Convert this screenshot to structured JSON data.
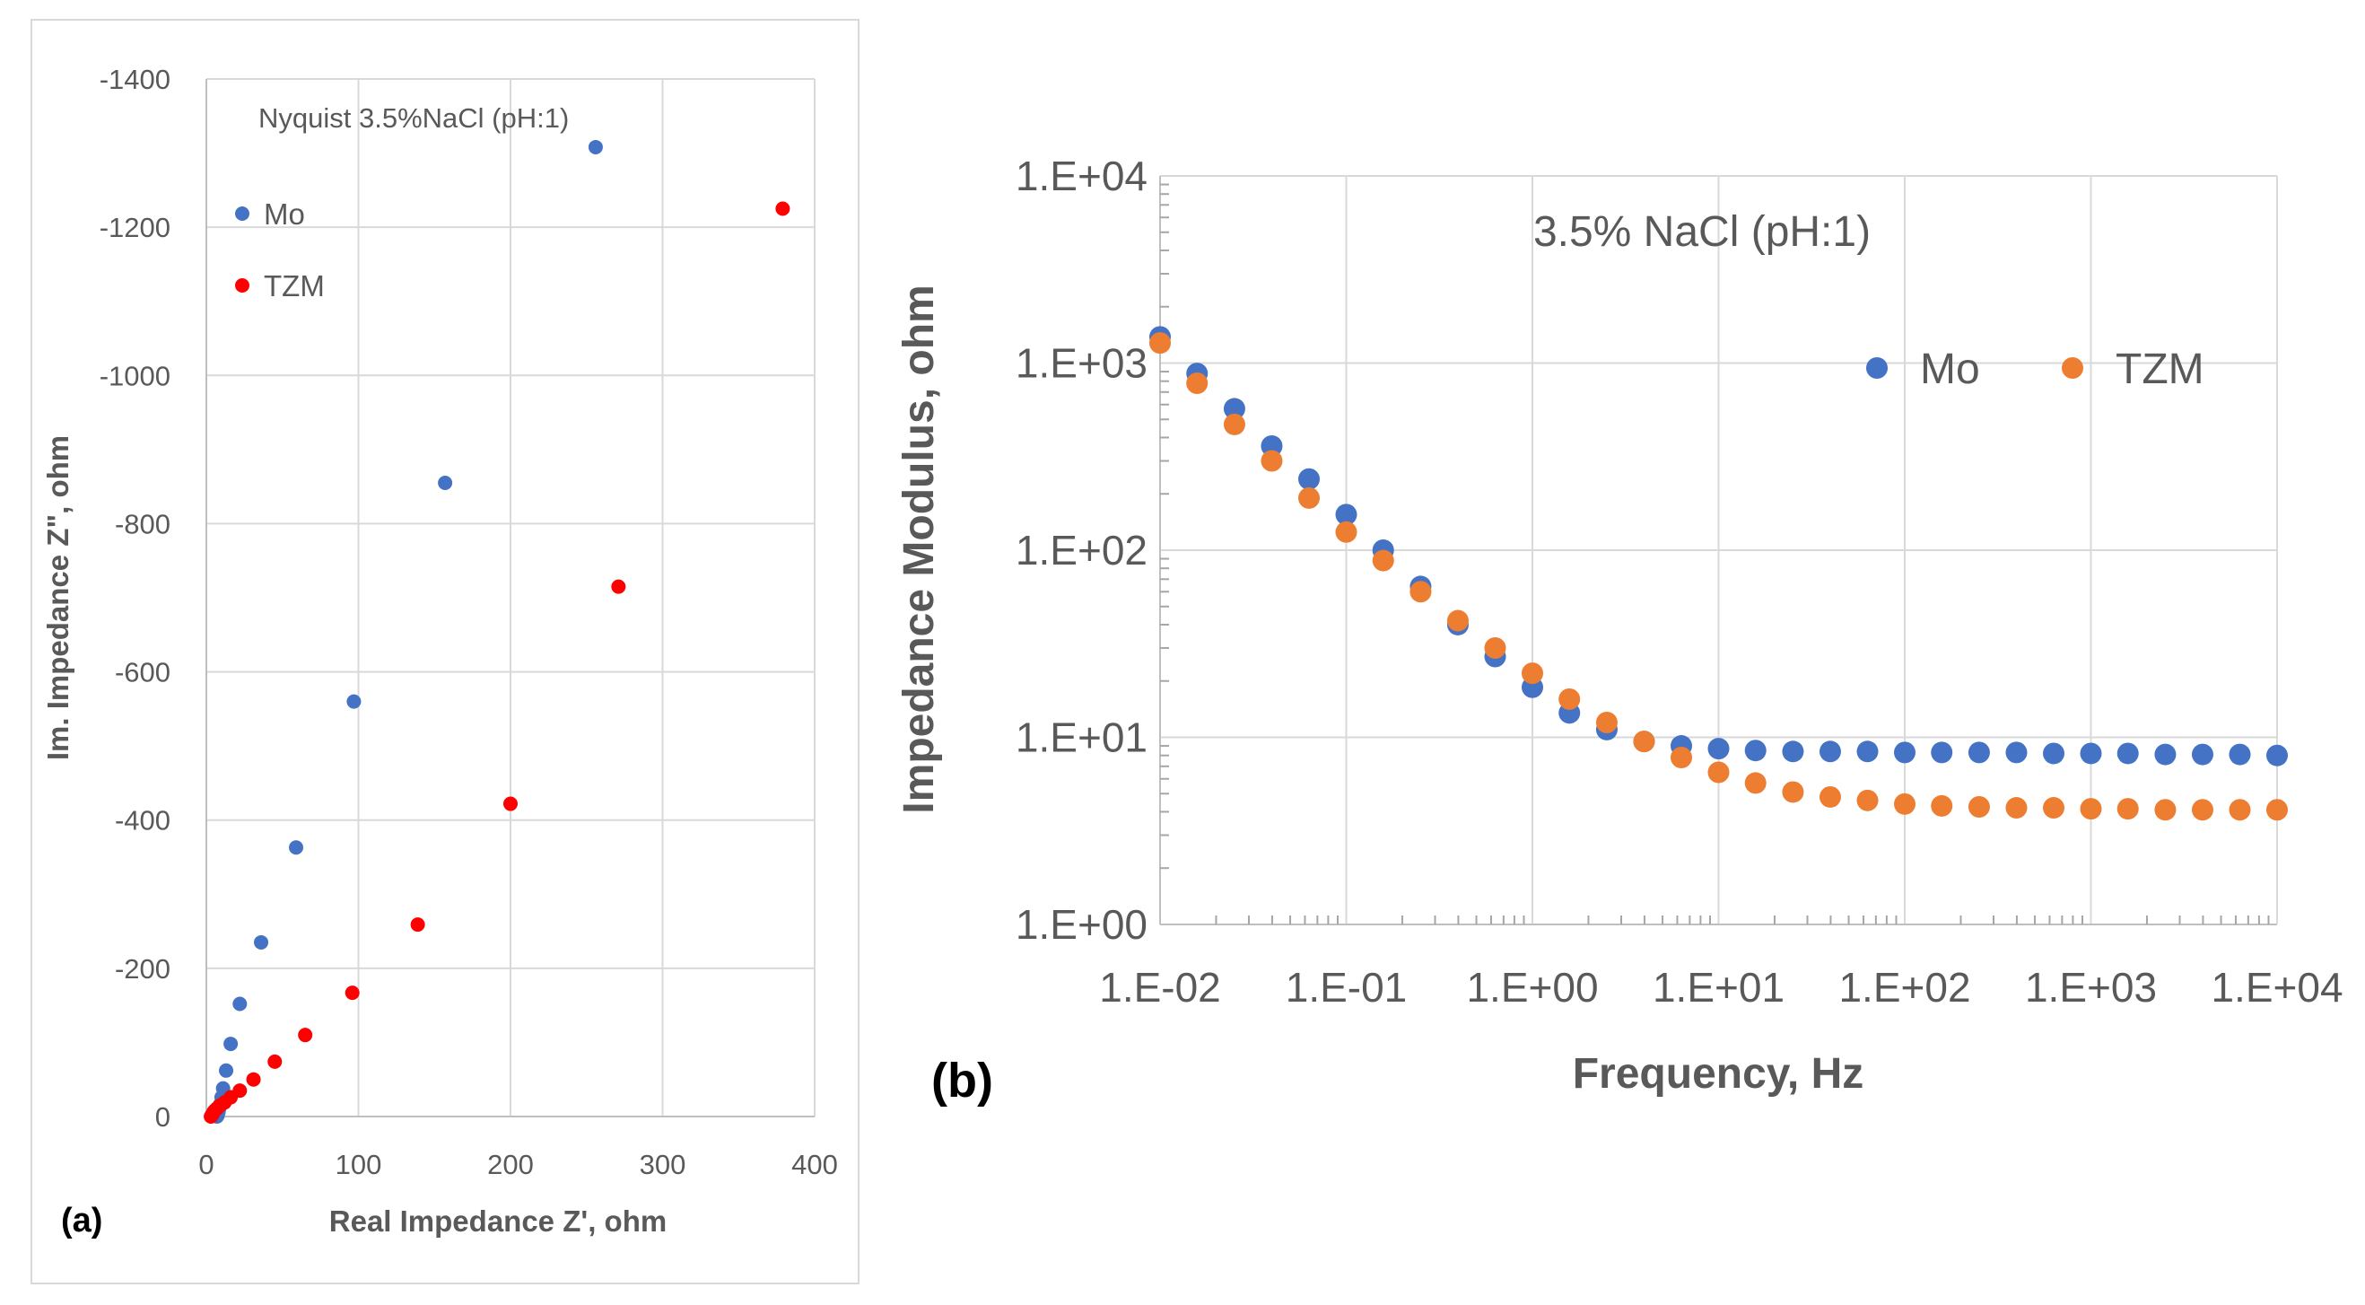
{
  "panels": {
    "a": {
      "label": "(a)"
    },
    "b": {
      "label": "(b)"
    }
  },
  "colors": {
    "mo_a": "#4472C4",
    "tzm_a": "#FF0000",
    "mo_b": "#4472C4",
    "tzm_b": "#ED7D31",
    "grid": "#D9D9D9",
    "text": "#595959"
  },
  "chart_data": [
    {
      "type": "scatter",
      "title": "Nyquist 3.5%NaCl (pH:1)",
      "xlabel": "Real Impedance Z', ohm",
      "ylabel": "Im. Impedance Z\", ohm",
      "xlim": [
        0,
        400
      ],
      "ylim": [
        0,
        -1400
      ],
      "xticks": [
        0,
        100,
        200,
        300,
        400
      ],
      "yticks": [
        0,
        -200,
        -400,
        -600,
        -800,
        -1000,
        -1200,
        -1400
      ],
      "grid": true,
      "legend_position": "top-left",
      "series": [
        {
          "name": "Mo",
          "x": [
            256,
            157,
            97,
            59,
            36,
            22,
            16,
            13,
            11,
            10,
            9,
            8.5,
            8,
            7.5,
            7
          ],
          "y": [
            -1308,
            -855,
            -560,
            -363,
            -235,
            -152,
            -98,
            -62,
            -38,
            -26,
            -16,
            -11,
            -6,
            -2,
            0
          ]
        },
        {
          "name": "TZM",
          "x": [
            379,
            271,
            200,
            139,
            96,
            65,
            45,
            31,
            22,
            16,
            12,
            9,
            7,
            6,
            5,
            4.5,
            4,
            3.5,
            3
          ],
          "y": [
            -1225,
            -715,
            -422,
            -259,
            -167,
            -110,
            -74,
            -50,
            -35,
            -26,
            -19,
            -15,
            -11,
            -9,
            -7,
            -5,
            -3,
            -1.5,
            0
          ]
        }
      ]
    },
    {
      "type": "scatter",
      "title": "3.5% NaCl (pH:1)",
      "xlabel": "Frequency, Hz",
      "ylabel": "Impedance Modulus, ohm",
      "xscale": "log",
      "yscale": "log",
      "xlim": [
        0.01,
        10000
      ],
      "ylim": [
        1,
        10000
      ],
      "xticks": [
        "1.E-02",
        "1.E-01",
        "1.E+00",
        "1.E+01",
        "1.E+02",
        "1.E+03",
        "1.E+04"
      ],
      "yticks": [
        "1.E+00",
        "1.E+01",
        "1.E+02",
        "1.E+03",
        "1.E+04"
      ],
      "grid": true,
      "legend_position": "top-right",
      "x": [
        0.01,
        0.0158,
        0.0251,
        0.0398,
        0.0631,
        0.1,
        0.158,
        0.251,
        0.398,
        0.631,
        1,
        1.58,
        2.51,
        3.98,
        6.31,
        10,
        15.8,
        25.1,
        39.8,
        63.1,
        100,
        158,
        251,
        398,
        631,
        1000,
        1580,
        2510,
        3980,
        6310,
        10000
      ],
      "series": [
        {
          "name": "Mo",
          "values": [
            1380,
            880,
            570,
            360,
            240,
            155,
            100,
            64,
            40,
            27,
            18.5,
            13.5,
            11,
            9.5,
            9,
            8.7,
            8.5,
            8.4,
            8.4,
            8.4,
            8.3,
            8.3,
            8.3,
            8.3,
            8.2,
            8.2,
            8.2,
            8.1,
            8.1,
            8.1,
            8
          ]
        },
        {
          "name": "TZM",
          "values": [
            1280,
            780,
            470,
            300,
            190,
            125,
            88,
            60,
            42,
            30,
            22,
            16,
            12,
            9.5,
            7.8,
            6.5,
            5.7,
            5.1,
            4.8,
            4.6,
            4.4,
            4.3,
            4.25,
            4.2,
            4.2,
            4.15,
            4.15,
            4.1,
            4.1,
            4.1,
            4.1
          ]
        }
      ]
    }
  ]
}
